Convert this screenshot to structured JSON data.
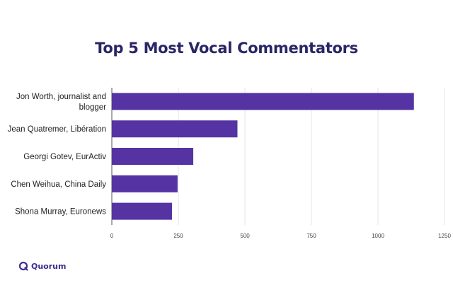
{
  "chart_data": {
    "type": "bar",
    "orientation": "horizontal",
    "title": "Top 5 Most Vocal Commentators",
    "categories": [
      [
        "Jon Worth, journalist and",
        "blogger"
      ],
      [
        "Jean Quatremer, Libération"
      ],
      [
        "Georgi Gotev, EurActiv"
      ],
      [
        "Chen Weihua, China Daily"
      ],
      [
        "Shona Murray, Euronews"
      ]
    ],
    "values": [
      1135,
      472,
      306,
      247,
      226
    ],
    "xlim": [
      0,
      1250
    ],
    "xticks": [
      0,
      250,
      500,
      750,
      1000,
      1250
    ],
    "grid": "vertical",
    "bar_color": "#5533a3"
  },
  "brand": {
    "logo_text": "Quorum",
    "logo_icon": "quorum-logo-icon"
  }
}
